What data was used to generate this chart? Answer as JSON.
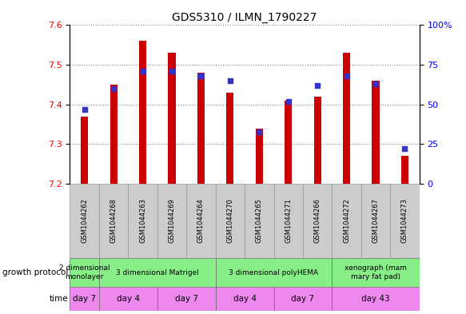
{
  "title": "GDS5310 / ILMN_1790227",
  "samples": [
    "GSM1044262",
    "GSM1044268",
    "GSM1044263",
    "GSM1044269",
    "GSM1044264",
    "GSM1044270",
    "GSM1044265",
    "GSM1044271",
    "GSM1044266",
    "GSM1044272",
    "GSM1044267",
    "GSM1044273"
  ],
  "transformed_counts": [
    7.37,
    7.45,
    7.56,
    7.53,
    7.48,
    7.43,
    7.34,
    7.41,
    7.42,
    7.53,
    7.46,
    7.27
  ],
  "percentile_ranks": [
    47,
    60,
    71,
    71,
    68,
    65,
    33,
    52,
    62,
    68,
    63,
    22
  ],
  "bar_bottom": 7.2,
  "ylim": [
    7.2,
    7.6
  ],
  "y2lim": [
    0,
    100
  ],
  "y_ticks": [
    7.2,
    7.3,
    7.4,
    7.5,
    7.6
  ],
  "y2_ticks": [
    0,
    25,
    50,
    75,
    100
  ],
  "bar_color": "#cc0000",
  "dot_color": "#3333cc",
  "growth_color": "#88ee88",
  "time_color": "#ee88ee",
  "sample_bg_color": "#cccccc",
  "grid_color": "#888888",
  "bar_width": 0.25,
  "dot_size": 20,
  "gp_groups": [
    {
      "label": "2 dimensional\nmonolayer",
      "cols": [
        0
      ]
    },
    {
      "label": "3 dimensional Matrigel",
      "cols": [
        1,
        2,
        3,
        4
      ]
    },
    {
      "label": "3 dimensional polyHEMA",
      "cols": [
        5,
        6,
        7,
        8
      ]
    },
    {
      "label": "xenograph (mam\nmary fat pad)",
      "cols": [
        9,
        10,
        11
      ]
    }
  ],
  "time_groups": [
    {
      "label": "day 7",
      "cols": [
        0
      ]
    },
    {
      "label": "day 4",
      "cols": [
        1,
        2
      ]
    },
    {
      "label": "day 7",
      "cols": [
        3,
        4
      ]
    },
    {
      "label": "day 4",
      "cols": [
        5,
        6
      ]
    },
    {
      "label": "day 7",
      "cols": [
        7,
        8
      ]
    },
    {
      "label": "day 43",
      "cols": [
        9,
        10,
        11
      ]
    }
  ]
}
